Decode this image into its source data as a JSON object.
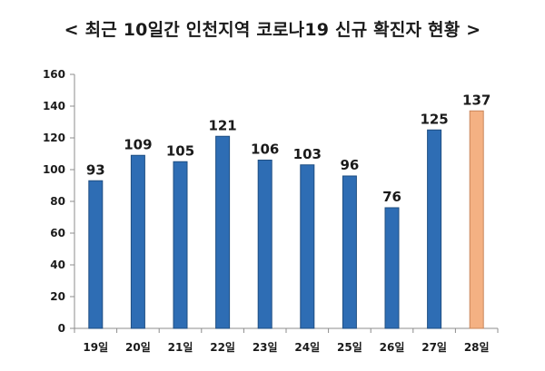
{
  "chart_data": {
    "type": "bar",
    "title": "< 최근 10일간 인천지역 코로나19 신규 확진자 현황 >",
    "categories": [
      "19일",
      "20일",
      "21일",
      "22일",
      "23일",
      "24일",
      "25일",
      "26일",
      "27일",
      "28일"
    ],
    "values": [
      93,
      109,
      105,
      121,
      106,
      103,
      96,
      76,
      125,
      137
    ],
    "ylim": [
      0,
      160
    ],
    "yticks": [
      0,
      20,
      40,
      60,
      80,
      100,
      120,
      140,
      160
    ],
    "grid": false,
    "legend": "none",
    "colors": {
      "bar": "#2e6db4",
      "bar_stroke": "#1f4e82",
      "highlight": "#f4b183",
      "highlight_stroke": "#c9865a",
      "axis": "#8c8c8c"
    },
    "highlight_index": 9
  }
}
